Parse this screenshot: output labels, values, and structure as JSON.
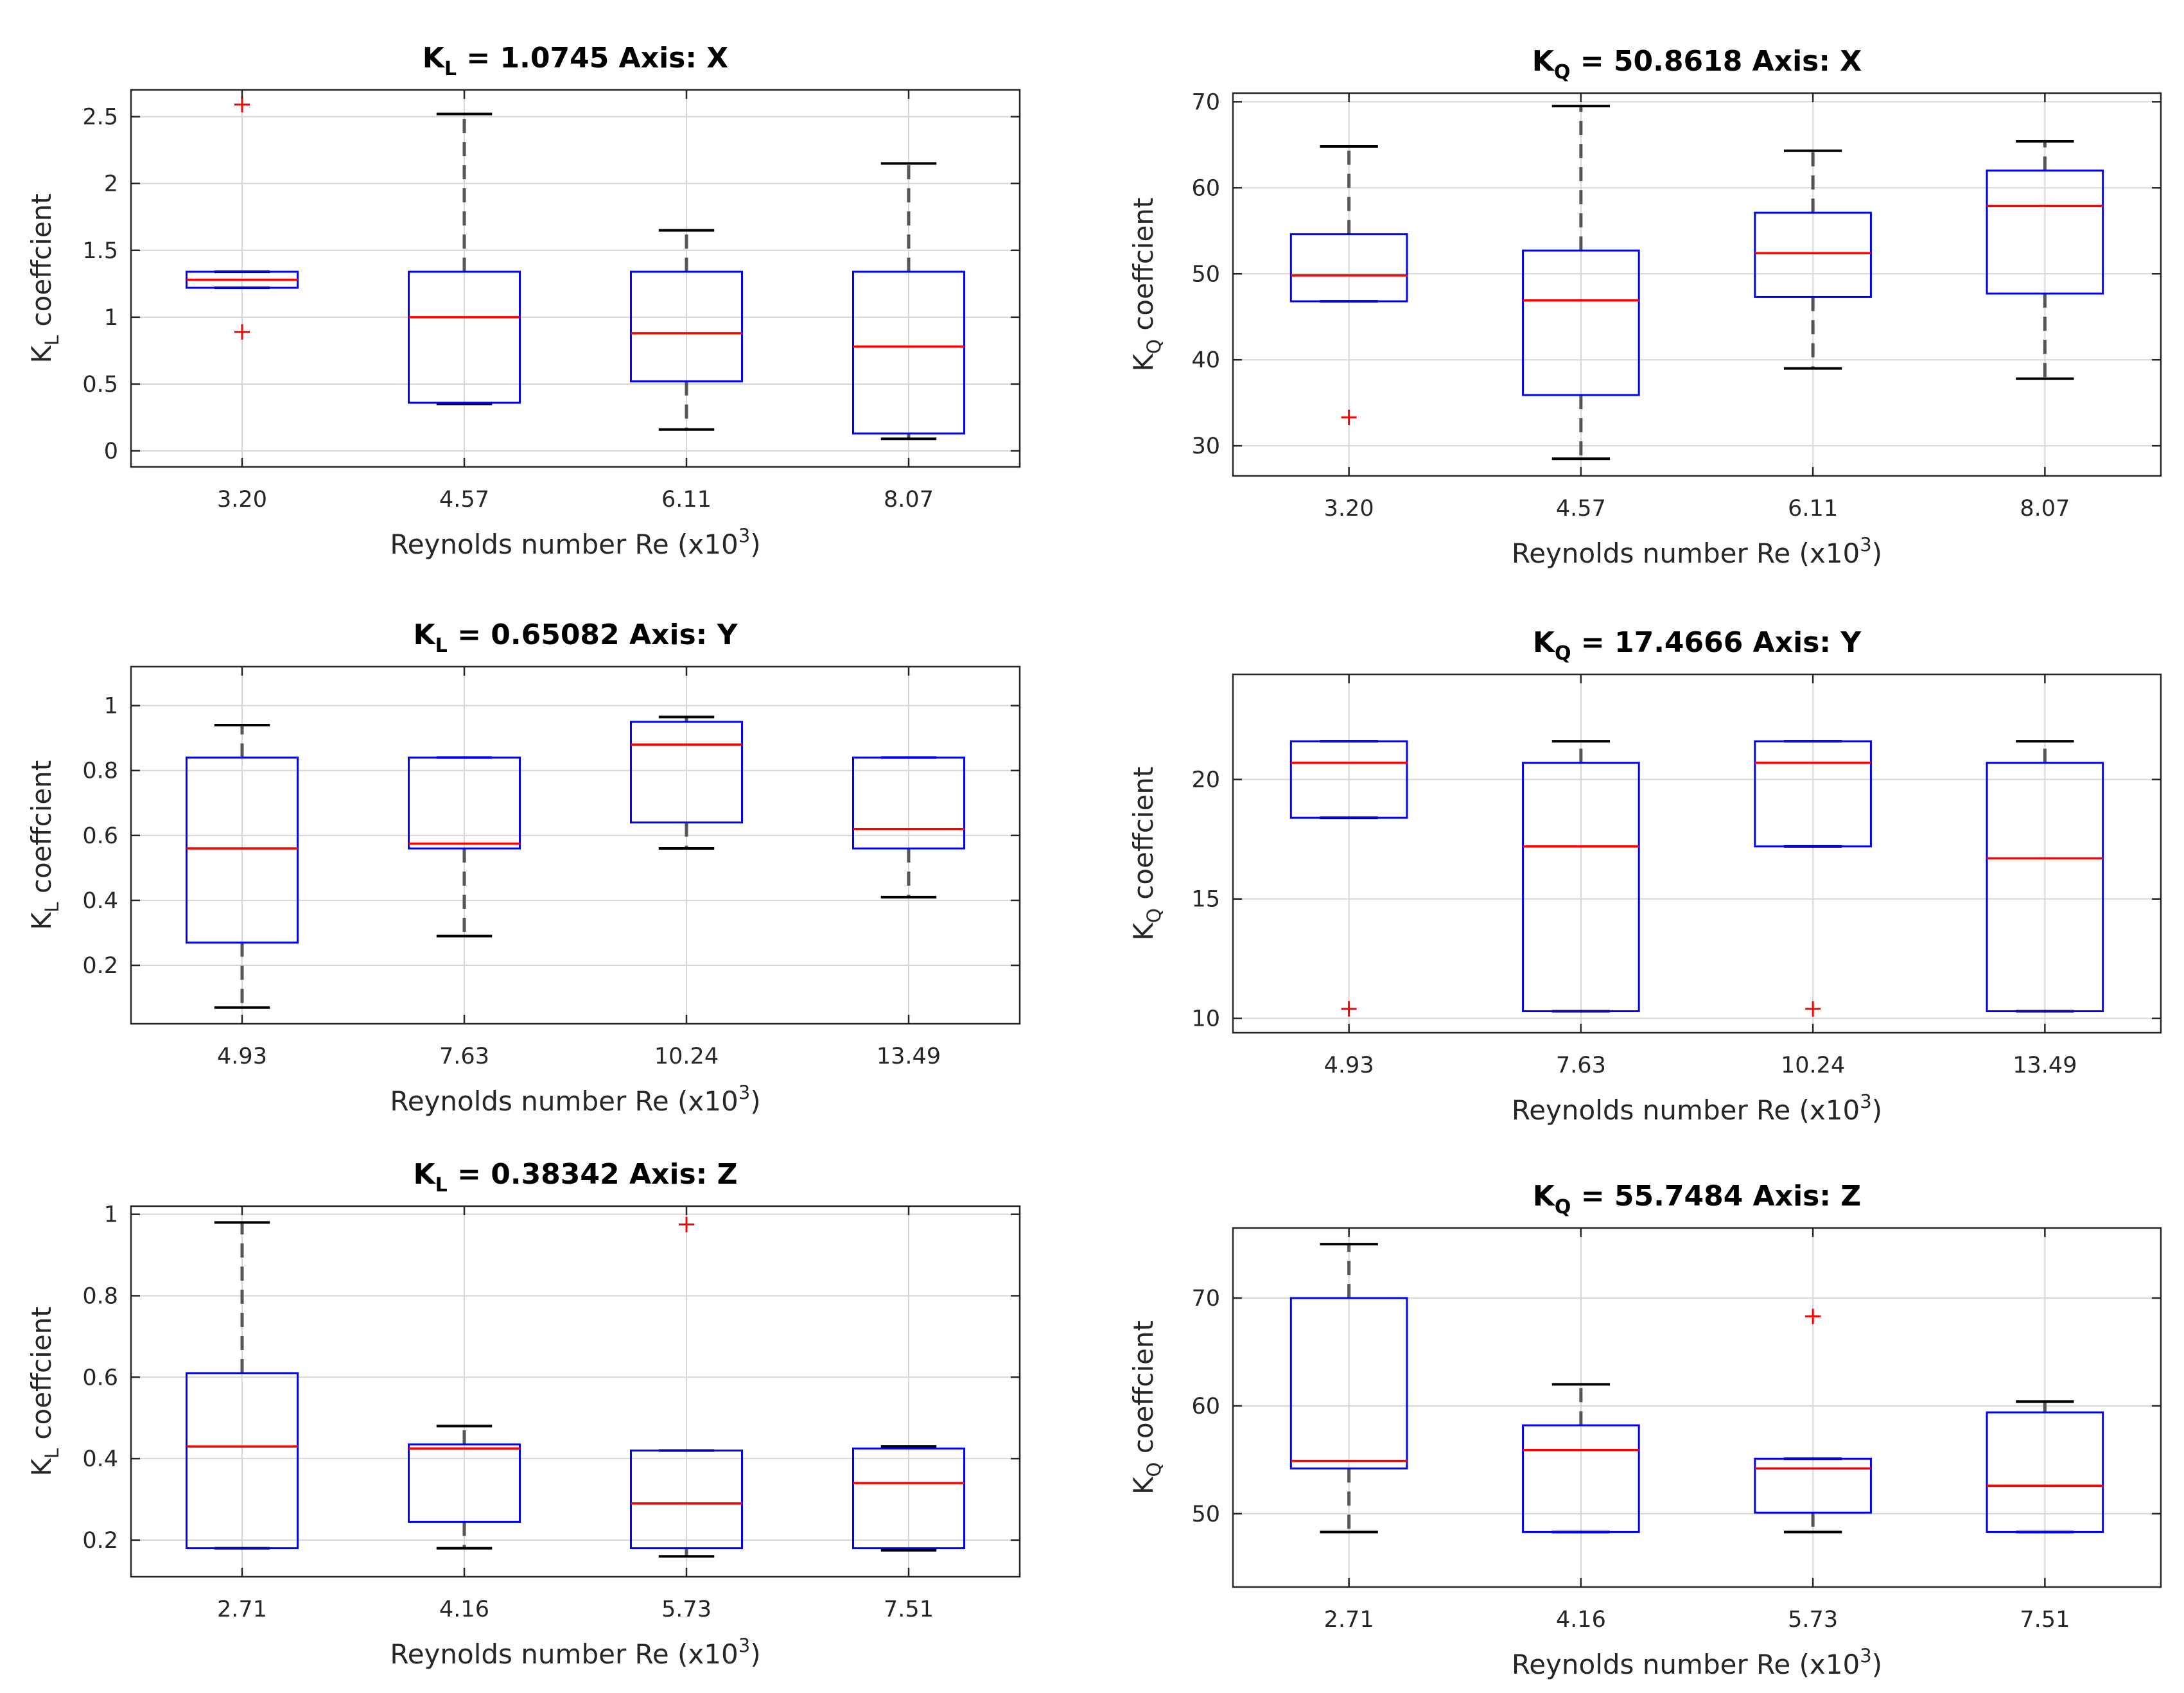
{
  "figure": {
    "xlabel": "Reynolds number Re (x10",
    "xlabel_sup": "3",
    "xlabel_end": ")"
  },
  "chart_data": [
    {
      "type": "box",
      "title_prefix": "K",
      "title_sub": "L",
      "title_rest": " = 1.0745 Axis: X",
      "ylabel_base": "K",
      "ylabel_sub": "L",
      "ylabel_rest": " coeffcient",
      "categories": [
        "3.20",
        "4.57",
        "6.11",
        "8.07"
      ],
      "ylim": [
        -0.12,
        2.7
      ],
      "yticks": [
        {
          "v": 0,
          "label": "0"
        },
        {
          "v": 0.5,
          "label": "0.5"
        },
        {
          "v": 1,
          "label": "1"
        },
        {
          "v": 1.5,
          "label": "1.5"
        },
        {
          "v": 2,
          "label": "2"
        },
        {
          "v": 2.5,
          "label": "2.5"
        }
      ],
      "boxes": [
        {
          "whisker_low": 1.22,
          "q1": 1.22,
          "median": 1.28,
          "q3": 1.34,
          "whisker_high": 1.34,
          "outliers": [
            2.59,
            0.89
          ]
        },
        {
          "whisker_low": 0.35,
          "q1": 0.36,
          "median": 1.0,
          "q3": 1.34,
          "whisker_high": 2.52,
          "outliers": []
        },
        {
          "whisker_low": 0.16,
          "q1": 0.52,
          "median": 0.88,
          "q3": 1.34,
          "whisker_high": 1.65,
          "outliers": []
        },
        {
          "whisker_low": 0.09,
          "q1": 0.13,
          "median": 0.78,
          "q3": 1.34,
          "whisker_high": 2.15,
          "outliers": []
        }
      ]
    },
    {
      "type": "box",
      "title_prefix": "K",
      "title_sub": "Q",
      "title_rest": " = 50.8618 Axis: X",
      "ylabel_base": "K",
      "ylabel_sub": "Q",
      "ylabel_rest": " coeffcient",
      "categories": [
        "3.20",
        "4.57",
        "6.11",
        "8.07"
      ],
      "ylim": [
        26.5,
        71
      ],
      "yticks": [
        {
          "v": 30,
          "label": "30"
        },
        {
          "v": 40,
          "label": "40"
        },
        {
          "v": 50,
          "label": "50"
        },
        {
          "v": 60,
          "label": "60"
        },
        {
          "v": 70,
          "label": "70"
        }
      ],
      "boxes": [
        {
          "whisker_low": 46.8,
          "q1": 46.8,
          "median": 49.8,
          "q3": 54.6,
          "whisker_high": 64.8,
          "outliers": [
            33.3
          ]
        },
        {
          "whisker_low": 28.5,
          "q1": 35.9,
          "median": 46.9,
          "q3": 52.7,
          "whisker_high": 69.5,
          "outliers": []
        },
        {
          "whisker_low": 39.0,
          "q1": 47.3,
          "median": 52.4,
          "q3": 57.1,
          "whisker_high": 64.3,
          "outliers": []
        },
        {
          "whisker_low": 37.8,
          "q1": 47.7,
          "median": 57.9,
          "q3": 62.0,
          "whisker_high": 65.4,
          "outliers": []
        }
      ]
    },
    {
      "type": "box",
      "title_prefix": "K",
      "title_sub": "L",
      "title_rest": " = 0.65082 Axis: Y",
      "ylabel_base": "K",
      "ylabel_sub": "L",
      "ylabel_rest": " coeffcient",
      "categories": [
        "4.93",
        "7.63",
        "10.24",
        "13.49"
      ],
      "ylim": [
        0.02,
        1.12
      ],
      "yticks": [
        {
          "v": 0.2,
          "label": "0.2"
        },
        {
          "v": 0.4,
          "label": "0.4"
        },
        {
          "v": 0.6,
          "label": "0.6"
        },
        {
          "v": 0.8,
          "label": "0.8"
        },
        {
          "v": 1,
          "label": "1"
        }
      ],
      "boxes": [
        {
          "whisker_low": 0.07,
          "q1": 0.27,
          "median": 0.56,
          "q3": 0.84,
          "whisker_high": 0.94,
          "outliers": []
        },
        {
          "whisker_low": 0.29,
          "q1": 0.56,
          "median": 0.575,
          "q3": 0.84,
          "whisker_high": 0.84,
          "outliers": []
        },
        {
          "whisker_low": 0.56,
          "q1": 0.64,
          "median": 0.88,
          "q3": 0.95,
          "whisker_high": 0.965,
          "outliers": []
        },
        {
          "whisker_low": 0.41,
          "q1": 0.56,
          "median": 0.62,
          "q3": 0.84,
          "whisker_high": 0.84,
          "outliers": []
        }
      ]
    },
    {
      "type": "box",
      "title_prefix": "K",
      "title_sub": "Q",
      "title_rest": " = 17.4666 Axis: Y",
      "ylabel_base": "K",
      "ylabel_sub": "Q",
      "ylabel_rest": " coeffcient",
      "categories": [
        "4.93",
        "7.63",
        "10.24",
        "13.49"
      ],
      "ylim": [
        9.4,
        24.4
      ],
      "yticks": [
        {
          "v": 10,
          "label": "10"
        },
        {
          "v": 15,
          "label": "15"
        },
        {
          "v": 20,
          "label": "20"
        }
      ],
      "boxes": [
        {
          "whisker_low": 18.4,
          "q1": 18.4,
          "median": 20.7,
          "q3": 21.6,
          "whisker_high": 21.6,
          "outliers": [
            10.4
          ]
        },
        {
          "whisker_low": 10.3,
          "q1": 10.3,
          "median": 17.2,
          "q3": 20.7,
          "whisker_high": 21.6,
          "outliers": []
        },
        {
          "whisker_low": 17.2,
          "q1": 17.2,
          "median": 20.7,
          "q3": 21.6,
          "whisker_high": 21.6,
          "outliers": [
            10.4
          ]
        },
        {
          "whisker_low": 10.3,
          "q1": 10.3,
          "median": 16.7,
          "q3": 20.7,
          "whisker_high": 21.6,
          "outliers": []
        }
      ]
    },
    {
      "type": "box",
      "title_prefix": "K",
      "title_sub": "L",
      "title_rest": " = 0.38342 Axis: Z",
      "ylabel_base": "K",
      "ylabel_sub": "L",
      "ylabel_rest": " coeffcient",
      "categories": [
        "2.71",
        "4.16",
        "5.73",
        "7.51"
      ],
      "ylim": [
        0.11,
        1.02
      ],
      "yticks": [
        {
          "v": 0.2,
          "label": "0.2"
        },
        {
          "v": 0.4,
          "label": "0.4"
        },
        {
          "v": 0.6,
          "label": "0.6"
        },
        {
          "v": 0.8,
          "label": "0.8"
        },
        {
          "v": 1,
          "label": "1"
        }
      ],
      "boxes": [
        {
          "whisker_low": 0.18,
          "q1": 0.18,
          "median": 0.43,
          "q3": 0.61,
          "whisker_high": 0.98,
          "outliers": []
        },
        {
          "whisker_low": 0.18,
          "q1": 0.245,
          "median": 0.425,
          "q3": 0.435,
          "whisker_high": 0.48,
          "outliers": []
        },
        {
          "whisker_low": 0.16,
          "q1": 0.18,
          "median": 0.29,
          "q3": 0.42,
          "whisker_high": 0.42,
          "outliers": [
            0.975
          ]
        },
        {
          "whisker_low": 0.175,
          "q1": 0.18,
          "median": 0.34,
          "q3": 0.425,
          "whisker_high": 0.43,
          "outliers": []
        }
      ]
    },
    {
      "type": "box",
      "title_prefix": "K",
      "title_sub": "Q",
      "title_rest": " = 55.7484 Axis: Z",
      "ylabel_base": "K",
      "ylabel_sub": "Q",
      "ylabel_rest": " coeffcient",
      "categories": [
        "2.71",
        "4.16",
        "5.73",
        "7.51"
      ],
      "ylim": [
        43.2,
        76.5
      ],
      "yticks": [
        {
          "v": 50,
          "label": "50"
        },
        {
          "v": 60,
          "label": "60"
        },
        {
          "v": 70,
          "label": "70"
        }
      ],
      "boxes": [
        {
          "whisker_low": 48.3,
          "q1": 54.2,
          "median": 54.9,
          "q3": 70.0,
          "whisker_high": 75.0,
          "outliers": []
        },
        {
          "whisker_low": 48.3,
          "q1": 48.3,
          "median": 55.9,
          "q3": 58.2,
          "whisker_high": 62.0,
          "outliers": []
        },
        {
          "whisker_low": 48.3,
          "q1": 50.1,
          "median": 54.2,
          "q3": 55.1,
          "whisker_high": 55.1,
          "outliers": [
            68.3
          ]
        },
        {
          "whisker_low": 48.3,
          "q1": 48.3,
          "median": 52.6,
          "q3": 59.4,
          "whisker_high": 60.4,
          "outliers": []
        }
      ]
    }
  ]
}
